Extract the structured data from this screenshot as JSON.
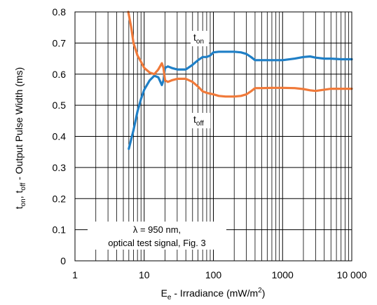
{
  "chart_data": {
    "type": "line",
    "xscale": "log",
    "xlim": [
      1,
      10000
    ],
    "ylim": [
      0,
      0.8
    ],
    "grid": true,
    "xlabel": {
      "main": "E",
      "sub": "e",
      "rest": " - Irradiance (mW/m",
      "sup": "2",
      "end": ")"
    },
    "ylabel": {
      "t1": "t",
      "s1": "on",
      "t2": ", t",
      "s2": "off",
      "rest": " - Output Pulse Width (ms)"
    },
    "x_ticks": [
      1,
      10,
      100,
      1000,
      10000
    ],
    "x_tick_labels": [
      "1",
      "10",
      "100",
      "1000",
      "10 000"
    ],
    "y_ticks": [
      0,
      0.1,
      0.2,
      0.3,
      0.4,
      0.5,
      0.6,
      0.7,
      0.8
    ],
    "y_tick_labels": [
      "0",
      "0.1",
      "0.2",
      "0.3",
      "0.4",
      "0.5",
      "0.6",
      "0.7",
      "0.8"
    ],
    "series": [
      {
        "name_main": "t",
        "name_sub": "on",
        "color": "#1f7fc6",
        "x": [
          6,
          7,
          8,
          9,
          10,
          12,
          14,
          16,
          18,
          19,
          20,
          22,
          25,
          30,
          40,
          50,
          60,
          70,
          80,
          90,
          100,
          120,
          150,
          200,
          250,
          300,
          350,
          400,
          500,
          700,
          1000,
          1500,
          2000,
          2500,
          3000,
          4000,
          5000,
          7000,
          10000
        ],
        "y": [
          0.36,
          0.42,
          0.48,
          0.52,
          0.55,
          0.58,
          0.595,
          0.59,
          0.565,
          0.58,
          0.62,
          0.625,
          0.62,
          0.615,
          0.615,
          0.63,
          0.645,
          0.655,
          0.655,
          0.66,
          0.67,
          0.672,
          0.672,
          0.672,
          0.67,
          0.665,
          0.655,
          0.645,
          0.645,
          0.645,
          0.645,
          0.65,
          0.655,
          0.657,
          0.653,
          0.65,
          0.65,
          0.648,
          0.648
        ]
      },
      {
        "name_main": "t",
        "name_sub": "off",
        "color": "#f07a3a",
        "x": [
          5.9,
          6.5,
          7,
          8,
          9,
          10,
          12,
          14,
          16,
          18,
          19,
          20,
          22,
          25,
          30,
          40,
          50,
          60,
          70,
          80,
          100,
          120,
          150,
          200,
          250,
          300,
          350,
          400,
          500,
          700,
          1000,
          1500,
          2000,
          2500,
          3000,
          4000,
          5000,
          7000,
          10000
        ],
        "y": [
          0.8,
          0.75,
          0.7,
          0.66,
          0.64,
          0.62,
          0.605,
          0.6,
          0.615,
          0.635,
          0.62,
          0.58,
          0.575,
          0.58,
          0.585,
          0.585,
          0.575,
          0.56,
          0.545,
          0.54,
          0.535,
          0.53,
          0.528,
          0.528,
          0.53,
          0.535,
          0.545,
          0.555,
          0.555,
          0.556,
          0.556,
          0.555,
          0.552,
          0.548,
          0.546,
          0.55,
          0.553,
          0.553,
          0.553
        ]
      }
    ],
    "annotation": {
      "line1": "λ = 950 nm,",
      "line2": "optical test signal, Fig. 3"
    }
  }
}
